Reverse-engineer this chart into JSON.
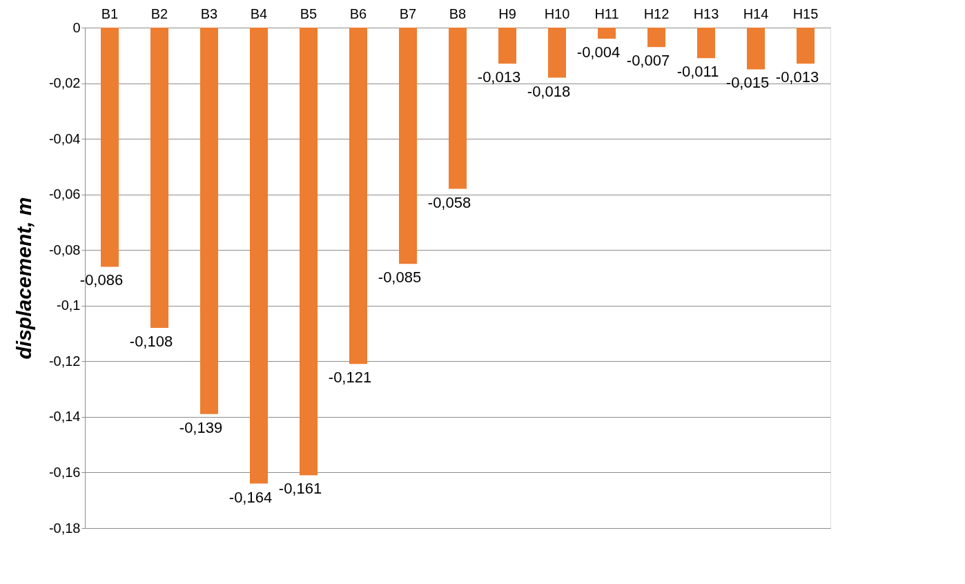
{
  "chart_data": {
    "type": "bar",
    "ylabel": "displacement, m",
    "categories": [
      "B1",
      "B2",
      "B3",
      "B4",
      "B5",
      "B6",
      "B7",
      "B8",
      "H9",
      "H10",
      "H11",
      "H12",
      "H13",
      "H14",
      "H15"
    ],
    "values": [
      -0.086,
      -0.108,
      -0.139,
      -0.164,
      -0.161,
      -0.121,
      -0.085,
      -0.058,
      -0.013,
      -0.018,
      -0.004,
      -0.007,
      -0.011,
      -0.015,
      -0.013
    ],
    "value_labels": [
      "-0,086",
      "-0,108",
      "-0,139",
      "-0,164",
      "-0,161",
      "-0,121",
      "-0,085",
      "-0,058",
      "-0,013",
      "-0,018",
      "-0,004",
      "-0,007",
      "-0,011",
      "-0,015",
      "-0,013"
    ],
    "color": "#ed7d31",
    "ylim": [
      -0.18,
      0
    ],
    "yticks": [
      0,
      {
        "value": -0.02,
        "label": "-0,02"
      },
      {
        "value": -0.04,
        "label": "-0,04"
      },
      {
        "value": -0.06,
        "label": "-0,06"
      },
      {
        "value": -0.08,
        "label": "-0,08"
      },
      {
        "value": -0.1,
        "label": "-0,1"
      },
      {
        "value": -0.12,
        "label": "-0,12"
      },
      {
        "value": -0.14,
        "label": "-0,14"
      },
      {
        "value": -0.16,
        "label": "-0,16"
      },
      {
        "value": -0.18,
        "label": "-0,18"
      }
    ],
    "grid": "y"
  }
}
